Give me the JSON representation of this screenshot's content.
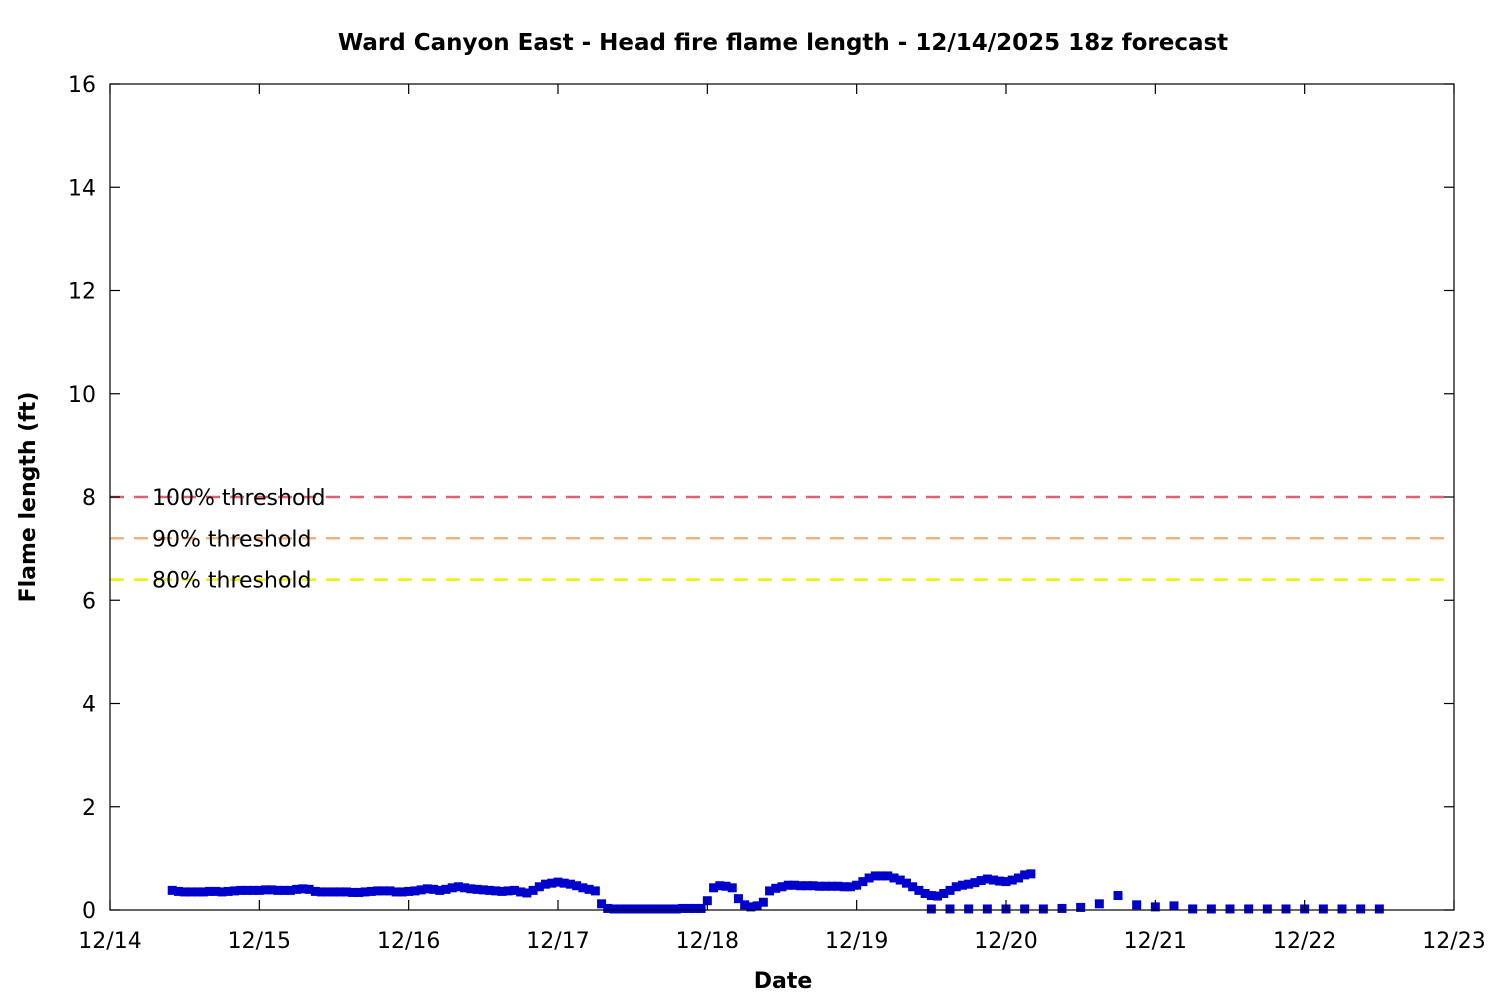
{
  "chart_data": {
    "type": "scatter",
    "title": "Ward Canyon East - Head fire flame length - 12/14/2025 18z forecast",
    "xlabel": "Date",
    "ylabel": "Flame length (ft)",
    "xlim": [
      "12/14",
      "12/23"
    ],
    "ylim": [
      0,
      16
    ],
    "x_ticks": [
      "12/14",
      "12/15",
      "12/16",
      "12/17",
      "12/18",
      "12/19",
      "12/20",
      "12/21",
      "12/22",
      "12/23"
    ],
    "y_ticks": [
      "0",
      "2",
      "4",
      "6",
      "8",
      "10",
      "12",
      "14",
      "16"
    ],
    "grid": false,
    "marker_color": "#0000cc",
    "thresholds": [
      {
        "label": "100% threshold",
        "value": 8.0,
        "color": "#e06070"
      },
      {
        "label": "90% threshold",
        "value": 7.2,
        "color": "#f5b07a"
      },
      {
        "label": "80% threshold",
        "value": 6.4,
        "color": "#f0f000"
      }
    ],
    "series_hourly": {
      "x_start": "12/14 10:00",
      "x_step_hours": 1,
      "values": [
        0.38,
        0.36,
        0.35,
        0.35,
        0.35,
        0.35,
        0.36,
        0.36,
        0.35,
        0.36,
        0.37,
        0.38,
        0.38,
        0.38,
        0.38,
        0.39,
        0.39,
        0.38,
        0.38,
        0.38,
        0.4,
        0.41,
        0.4,
        0.36,
        0.35,
        0.35,
        0.35,
        0.35,
        0.35,
        0.34,
        0.34,
        0.35,
        0.36,
        0.37,
        0.37,
        0.37,
        0.35,
        0.35,
        0.36,
        0.37,
        0.39,
        0.41,
        0.4,
        0.38,
        0.4,
        0.43,
        0.45,
        0.43,
        0.41,
        0.4,
        0.39,
        0.38,
        0.37,
        0.36,
        0.37,
        0.38,
        0.35,
        0.33,
        0.38,
        0.45,
        0.5,
        0.52,
        0.54,
        0.52,
        0.5,
        0.47,
        0.43,
        0.4,
        0.37,
        0.12,
        0.03,
        0.02,
        0.02,
        0.02,
        0.02,
        0.02,
        0.02,
        0.02,
        0.02,
        0.02,
        0.02,
        0.02,
        0.03,
        0.03,
        0.03,
        0.03,
        0.18,
        0.43,
        0.47,
        0.46,
        0.43,
        0.22,
        0.1,
        0.06,
        0.08,
        0.15,
        0.37,
        0.42,
        0.45,
        0.48,
        0.48,
        0.47,
        0.47,
        0.47,
        0.46,
        0.46,
        0.46,
        0.46,
        0.45,
        0.45,
        0.48,
        0.55,
        0.62,
        0.66,
        0.66,
        0.66,
        0.62,
        0.58,
        0.52,
        0.45,
        0.38,
        0.32,
        0.28,
        0.27,
        0.32,
        0.38,
        0.45,
        0.48,
        0.5,
        0.53,
        0.57,
        0.6,
        0.58,
        0.56,
        0.55,
        0.58,
        0.62,
        0.68,
        0.7
      ]
    },
    "series_3hourly": {
      "x_start": "12/19 12:00",
      "x_step_hours": 3,
      "values": [
        0.02,
        0.02,
        0.02,
        0.02,
        0.02,
        0.02,
        0.02,
        0.03,
        0.05,
        0.12,
        0.28,
        0.1,
        0.06,
        0.08,
        0.02,
        0.02,
        0.02,
        0.02,
        0.02,
        0.02,
        0.02,
        0.02,
        0.02,
        0.02,
        0.02
      ]
    }
  }
}
